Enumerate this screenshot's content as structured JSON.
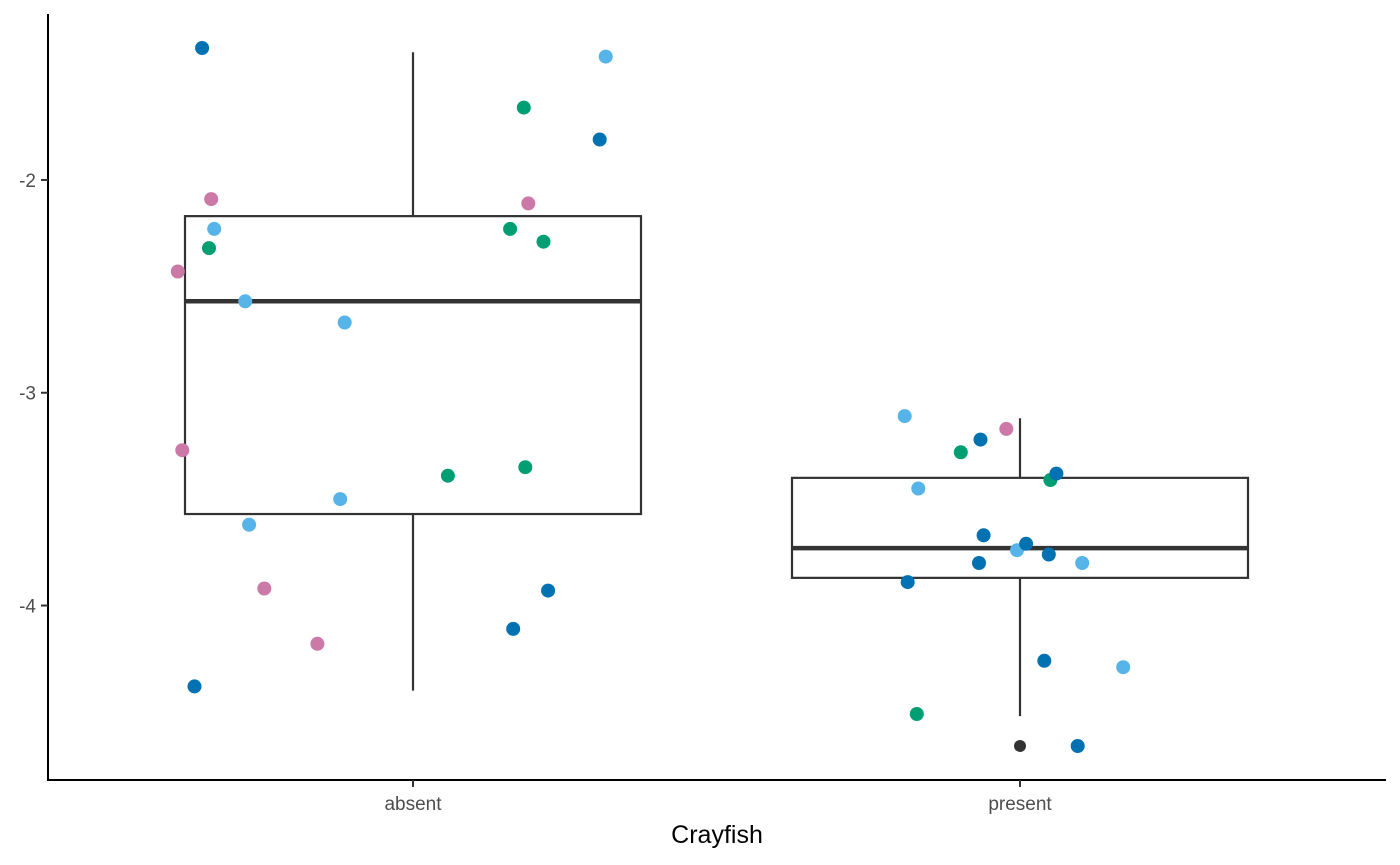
{
  "chart_data": {
    "type": "boxplot",
    "title": "",
    "xlabel": "Crayfish",
    "ylabel": "",
    "categories": [
      "absent",
      "present"
    ],
    "y_ticks": [
      -2,
      -3,
      -4
    ],
    "y_tick_labels": [
      "-2",
      "-3",
      "-4"
    ],
    "ylim": [
      -4.82,
      -1.22
    ],
    "grid": false,
    "legend": "none",
    "box_color": "#333333",
    "boxes": [
      {
        "category": "absent",
        "whisker_high": -1.4,
        "q3": -2.17,
        "median": -2.57,
        "q1": -3.57,
        "whisker_low": -4.4,
        "outliers": []
      },
      {
        "category": "present",
        "whisker_high": -3.12,
        "q3": -3.4,
        "median": -3.73,
        "q1": -3.87,
        "whisker_low": -4.52,
        "outliers": [
          -4.66
        ]
      }
    ],
    "points": [
      {
        "x": -0.695,
        "y": -1.38,
        "color": "#0072B2"
      },
      {
        "x": -0.655,
        "y": -2.23,
        "color": "#56B4E9"
      },
      {
        "x": -0.665,
        "y": -2.09,
        "color": "#CC79A7"
      },
      {
        "x": -0.672,
        "y": -2.32,
        "color": "#009E73"
      },
      {
        "x": -0.775,
        "y": -2.43,
        "color": "#CC79A7"
      },
      {
        "x": -0.553,
        "y": -2.57,
        "color": "#56B4E9"
      },
      {
        "x": -0.76,
        "y": -3.27,
        "color": "#CC79A7"
      },
      {
        "x": -0.54,
        "y": -3.62,
        "color": "#56B4E9"
      },
      {
        "x": -0.49,
        "y": -3.92,
        "color": "#CC79A7"
      },
      {
        "x": -0.315,
        "y": -4.18,
        "color": "#CC79A7"
      },
      {
        "x": -0.72,
        "y": -4.38,
        "color": "#0072B2"
      },
      {
        "x": -0.225,
        "y": -2.67,
        "color": "#56B4E9"
      },
      {
        "x": -0.24,
        "y": -3.5,
        "color": "#56B4E9"
      },
      {
        "x": 0.115,
        "y": -3.39,
        "color": "#009E73"
      },
      {
        "x": 0.32,
        "y": -2.23,
        "color": "#009E73"
      },
      {
        "x": 0.365,
        "y": -1.66,
        "color": "#009E73"
      },
      {
        "x": 0.38,
        "y": -2.11,
        "color": "#CC79A7"
      },
      {
        "x": 0.43,
        "y": -2.29,
        "color": "#009E73"
      },
      {
        "x": 0.37,
        "y": -3.35,
        "color": "#009E73"
      },
      {
        "x": 0.445,
        "y": -3.93,
        "color": "#0072B2"
      },
      {
        "x": 0.33,
        "y": -4.11,
        "color": "#0072B2"
      },
      {
        "x": 0.615,
        "y": -1.81,
        "color": "#0072B2"
      },
      {
        "x": 0.635,
        "y": -1.42,
        "color": "#56B4E9"
      },
      {
        "x": 1.62,
        "y": -3.11,
        "color": "#56B4E9"
      },
      {
        "x": 1.665,
        "y": -3.45,
        "color": "#56B4E9"
      },
      {
        "x": 1.805,
        "y": -3.28,
        "color": "#009E73"
      },
      {
        "x": 1.87,
        "y": -3.22,
        "color": "#0072B2"
      },
      {
        "x": 1.955,
        "y": -3.17,
        "color": "#CC79A7"
      },
      {
        "x": 1.88,
        "y": -3.67,
        "color": "#0072B2"
      },
      {
        "x": 1.865,
        "y": -3.8,
        "color": "#0072B2"
      },
      {
        "x": 1.63,
        "y": -3.89,
        "color": "#0072B2"
      },
      {
        "x": 2.1,
        "y": -3.41,
        "color": "#009E73"
      },
      {
        "x": 2.12,
        "y": -3.38,
        "color": "#0072B2"
      },
      {
        "x": 1.99,
        "y": -3.74,
        "color": "#56B4E9"
      },
      {
        "x": 2.02,
        "y": -3.71,
        "color": "#0072B2"
      },
      {
        "x": 2.095,
        "y": -3.76,
        "color": "#0072B2"
      },
      {
        "x": 2.205,
        "y": -3.8,
        "color": "#56B4E9"
      },
      {
        "x": 1.66,
        "y": -4.51,
        "color": "#009E73"
      },
      {
        "x": 2.08,
        "y": -4.26,
        "color": "#0072B2"
      },
      {
        "x": 2.34,
        "y": -4.29,
        "color": "#56B4E9"
      },
      {
        "x": 2.19,
        "y": -4.66,
        "color": "#0072B2"
      }
    ]
  }
}
